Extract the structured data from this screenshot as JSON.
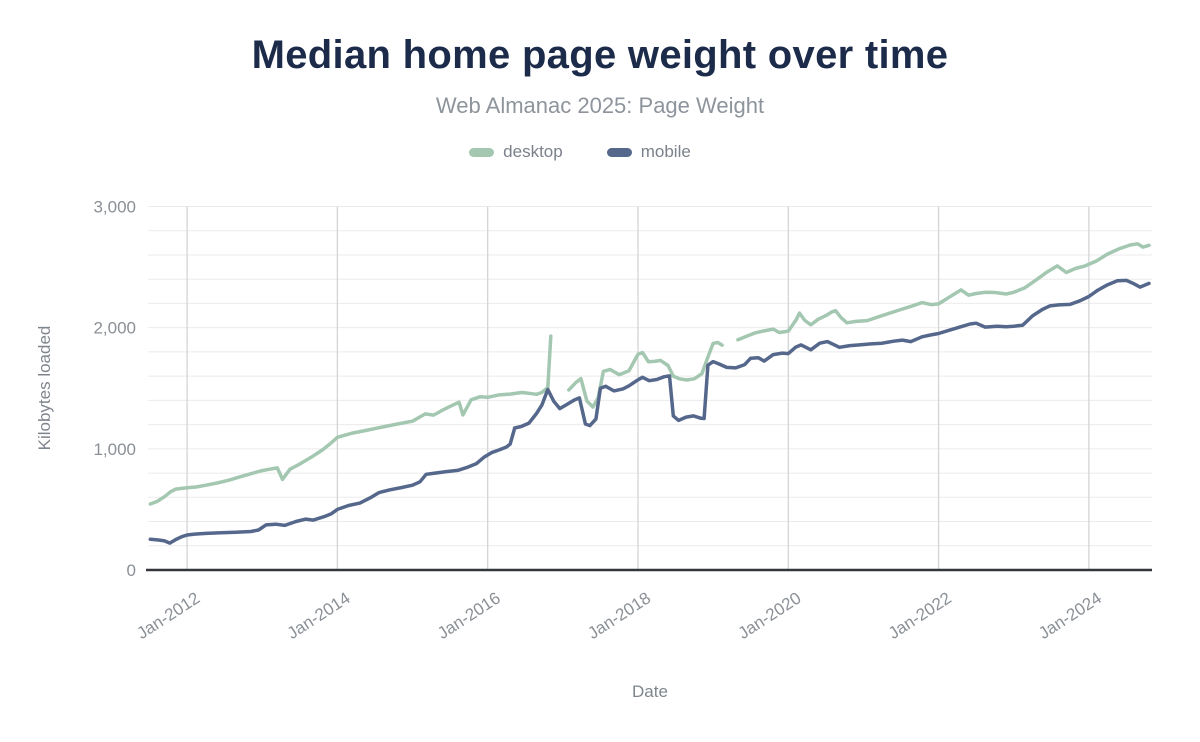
{
  "header": {
    "title": "Median home page weight over time",
    "subtitle": "Web Almanac 2025: Page Weight"
  },
  "legend": {
    "items": [
      {
        "label": "desktop",
        "color": "#a3c7b1"
      },
      {
        "label": "mobile",
        "color": "#55688c"
      }
    ]
  },
  "colors": {
    "title": "#1c2b4a",
    "subtitle_text": "#8e949c",
    "axis_text": "#8a9096",
    "axis_title_text": "#7f858c",
    "axis_line": "#33363b",
    "grid_minor": "#ebebeb",
    "grid_vertical": "#d2d4d6",
    "desktop_line": "#a3c7b1",
    "mobile_line": "#55688c"
  },
  "chart_data": {
    "type": "line",
    "title": "Median home page weight over time",
    "subtitle": "Web Almanac 2025: Page Weight",
    "xlabel": "Date",
    "ylabel": "Kilobytes loaded",
    "legend_position": "top",
    "grid": true,
    "ylim": [
      0,
      3000
    ],
    "y_minor_step": 200,
    "xlim": [
      2011.48,
      2024.84
    ],
    "y_ticks": [
      {
        "v": 0,
        "label": "0"
      },
      {
        "v": 1000,
        "label": "1,000"
      },
      {
        "v": 2000,
        "label": "2,000"
      },
      {
        "v": 3000,
        "label": "3,000"
      }
    ],
    "x_ticks": [
      {
        "t": 2012,
        "label": "Jan-2012"
      },
      {
        "t": 2014,
        "label": "Jan-2014"
      },
      {
        "t": 2016,
        "label": "Jan-2016"
      },
      {
        "t": 2018,
        "label": "Jan-2018"
      },
      {
        "t": 2020,
        "label": "Jan-2020"
      },
      {
        "t": 2022,
        "label": "Jan-2022"
      },
      {
        "t": 2024,
        "label": "Jan-2024"
      }
    ],
    "series": [
      {
        "name": "desktop",
        "color": "#a3c7b1",
        "points": [
          [
            2011.51,
            545
          ],
          [
            2011.6,
            565
          ],
          [
            2011.7,
            605
          ],
          [
            2011.78,
            645
          ],
          [
            2011.85,
            668
          ],
          [
            2012.0,
            678
          ],
          [
            2012.12,
            685
          ],
          [
            2012.25,
            700
          ],
          [
            2012.4,
            718
          ],
          [
            2012.55,
            740
          ],
          [
            2012.7,
            768
          ],
          [
            2012.85,
            795
          ],
          [
            2013.0,
            820
          ],
          [
            2013.1,
            832
          ],
          [
            2013.2,
            843
          ],
          [
            2013.27,
            748
          ],
          [
            2013.37,
            832
          ],
          [
            2013.5,
            875
          ],
          [
            2013.65,
            930
          ],
          [
            2013.8,
            990
          ],
          [
            2013.9,
            1040
          ],
          [
            2014.0,
            1095
          ],
          [
            2014.2,
            1130
          ],
          [
            2014.4,
            1155
          ],
          [
            2014.6,
            1180
          ],
          [
            2014.8,
            1205
          ],
          [
            2015.0,
            1228
          ],
          [
            2015.17,
            1288
          ],
          [
            2015.28,
            1278
          ],
          [
            2015.4,
            1320
          ],
          [
            2015.55,
            1365
          ],
          [
            2015.62,
            1385
          ],
          [
            2015.67,
            1280
          ],
          [
            2015.78,
            1405
          ],
          [
            2015.9,
            1430
          ],
          [
            2016.0,
            1425
          ],
          [
            2016.15,
            1445
          ],
          [
            2016.3,
            1452
          ],
          [
            2016.45,
            1465
          ],
          [
            2016.55,
            1458
          ],
          [
            2016.65,
            1450
          ],
          [
            2016.72,
            1465
          ],
          [
            2016.8,
            1505
          ],
          [
            2016.84,
            1930
          ],
          [
            2016.9,
            null
          ],
          [
            2017.08,
            1486
          ],
          [
            2017.17,
            1545
          ],
          [
            2017.24,
            1580
          ],
          [
            2017.32,
            1395
          ],
          [
            2017.4,
            1345
          ],
          [
            2017.47,
            1420
          ],
          [
            2017.54,
            1640
          ],
          [
            2017.63,
            1655
          ],
          [
            2017.75,
            1612
          ],
          [
            2017.88,
            1645
          ],
          [
            2018.0,
            1780
          ],
          [
            2018.06,
            1795
          ],
          [
            2018.14,
            1718
          ],
          [
            2018.22,
            1722
          ],
          [
            2018.3,
            1730
          ],
          [
            2018.4,
            1688
          ],
          [
            2018.47,
            1600
          ],
          [
            2018.55,
            1578
          ],
          [
            2018.65,
            1568
          ],
          [
            2018.75,
            1578
          ],
          [
            2018.85,
            1620
          ],
          [
            2018.92,
            1740
          ],
          [
            2019.0,
            1870
          ],
          [
            2019.06,
            1878
          ],
          [
            2019.12,
            1856
          ],
          [
            2019.2,
            null
          ],
          [
            2019.33,
            1900
          ],
          [
            2019.45,
            1930
          ],
          [
            2019.55,
            1955
          ],
          [
            2019.65,
            1970
          ],
          [
            2019.8,
            1988
          ],
          [
            2019.88,
            1960
          ],
          [
            2020.0,
            1972
          ],
          [
            2020.1,
            2060
          ],
          [
            2020.15,
            2120
          ],
          [
            2020.22,
            2060
          ],
          [
            2020.3,
            2023
          ],
          [
            2020.4,
            2070
          ],
          [
            2020.5,
            2100
          ],
          [
            2020.58,
            2130
          ],
          [
            2020.63,
            2140
          ],
          [
            2020.7,
            2085
          ],
          [
            2020.78,
            2040
          ],
          [
            2020.9,
            2052
          ],
          [
            2021.05,
            2058
          ],
          [
            2021.2,
            2090
          ],
          [
            2021.35,
            2120
          ],
          [
            2021.5,
            2150
          ],
          [
            2021.65,
            2180
          ],
          [
            2021.78,
            2207
          ],
          [
            2021.9,
            2190
          ],
          [
            2022.0,
            2196
          ],
          [
            2022.15,
            2255
          ],
          [
            2022.3,
            2312
          ],
          [
            2022.4,
            2268
          ],
          [
            2022.5,
            2282
          ],
          [
            2022.62,
            2292
          ],
          [
            2022.75,
            2290
          ],
          [
            2022.9,
            2278
          ],
          [
            2023.0,
            2292
          ],
          [
            2023.15,
            2330
          ],
          [
            2023.3,
            2395
          ],
          [
            2023.45,
            2462
          ],
          [
            2023.58,
            2510
          ],
          [
            2023.7,
            2455
          ],
          [
            2023.82,
            2488
          ],
          [
            2023.95,
            2510
          ],
          [
            2024.1,
            2550
          ],
          [
            2024.25,
            2608
          ],
          [
            2024.4,
            2650
          ],
          [
            2024.55,
            2682
          ],
          [
            2024.65,
            2692
          ],
          [
            2024.72,
            2665
          ],
          [
            2024.8,
            2680
          ]
        ]
      },
      {
        "name": "mobile",
        "color": "#55688c",
        "points": [
          [
            2011.51,
            253
          ],
          [
            2011.62,
            248
          ],
          [
            2011.7,
            240
          ],
          [
            2011.77,
            222
          ],
          [
            2011.85,
            252
          ],
          [
            2011.93,
            275
          ],
          [
            2012.0,
            289
          ],
          [
            2012.1,
            296
          ],
          [
            2012.25,
            302
          ],
          [
            2012.45,
            308
          ],
          [
            2012.65,
            312
          ],
          [
            2012.85,
            318
          ],
          [
            2012.95,
            330
          ],
          [
            2013.05,
            372
          ],
          [
            2013.18,
            378
          ],
          [
            2013.3,
            368
          ],
          [
            2013.45,
            400
          ],
          [
            2013.58,
            420
          ],
          [
            2013.68,
            412
          ],
          [
            2013.82,
            440
          ],
          [
            2013.92,
            465
          ],
          [
            2014.0,
            500
          ],
          [
            2014.15,
            532
          ],
          [
            2014.3,
            552
          ],
          [
            2014.45,
            600
          ],
          [
            2014.55,
            638
          ],
          [
            2014.7,
            662
          ],
          [
            2014.85,
            680
          ],
          [
            2015.0,
            700
          ],
          [
            2015.1,
            728
          ],
          [
            2015.18,
            790
          ],
          [
            2015.3,
            800
          ],
          [
            2015.45,
            812
          ],
          [
            2015.6,
            822
          ],
          [
            2015.72,
            845
          ],
          [
            2015.85,
            878
          ],
          [
            2015.95,
            930
          ],
          [
            2016.05,
            968
          ],
          [
            2016.15,
            990
          ],
          [
            2016.25,
            1015
          ],
          [
            2016.3,
            1040
          ],
          [
            2016.36,
            1172
          ],
          [
            2016.45,
            1185
          ],
          [
            2016.55,
            1212
          ],
          [
            2016.65,
            1292
          ],
          [
            2016.72,
            1360
          ],
          [
            2016.8,
            1490
          ],
          [
            2016.88,
            1392
          ],
          [
            2016.96,
            1332
          ],
          [
            2017.05,
            1365
          ],
          [
            2017.15,
            1402
          ],
          [
            2017.22,
            1420
          ],
          [
            2017.3,
            1205
          ],
          [
            2017.36,
            1192
          ],
          [
            2017.44,
            1245
          ],
          [
            2017.5,
            1500
          ],
          [
            2017.57,
            1516
          ],
          [
            2017.68,
            1478
          ],
          [
            2017.8,
            1495
          ],
          [
            2017.88,
            1520
          ],
          [
            2018.0,
            1570
          ],
          [
            2018.06,
            1590
          ],
          [
            2018.15,
            1562
          ],
          [
            2018.25,
            1572
          ],
          [
            2018.35,
            1595
          ],
          [
            2018.42,
            1602
          ],
          [
            2018.47,
            1272
          ],
          [
            2018.54,
            1235
          ],
          [
            2018.64,
            1262
          ],
          [
            2018.74,
            1272
          ],
          [
            2018.84,
            1252
          ],
          [
            2018.88,
            1250
          ],
          [
            2018.93,
            1690
          ],
          [
            2019.0,
            1720
          ],
          [
            2019.08,
            1700
          ],
          [
            2019.18,
            1672
          ],
          [
            2019.3,
            1668
          ],
          [
            2019.42,
            1695
          ],
          [
            2019.5,
            1748
          ],
          [
            2019.6,
            1752
          ],
          [
            2019.68,
            1724
          ],
          [
            2019.8,
            1778
          ],
          [
            2019.92,
            1790
          ],
          [
            2020.0,
            1786
          ],
          [
            2020.1,
            1840
          ],
          [
            2020.17,
            1858
          ],
          [
            2020.3,
            1817
          ],
          [
            2020.42,
            1872
          ],
          [
            2020.52,
            1885
          ],
          [
            2020.68,
            1838
          ],
          [
            2020.82,
            1852
          ],
          [
            2020.95,
            1858
          ],
          [
            2021.1,
            1866
          ],
          [
            2021.25,
            1872
          ],
          [
            2021.4,
            1888
          ],
          [
            2021.52,
            1897
          ],
          [
            2021.63,
            1885
          ],
          [
            2021.78,
            1925
          ],
          [
            2021.9,
            1940
          ],
          [
            2022.0,
            1952
          ],
          [
            2022.15,
            1980
          ],
          [
            2022.3,
            2008
          ],
          [
            2022.42,
            2030
          ],
          [
            2022.5,
            2037
          ],
          [
            2022.62,
            2005
          ],
          [
            2022.78,
            2012
          ],
          [
            2022.9,
            2008
          ],
          [
            2023.0,
            2012
          ],
          [
            2023.12,
            2020
          ],
          [
            2023.25,
            2097
          ],
          [
            2023.38,
            2150
          ],
          [
            2023.48,
            2180
          ],
          [
            2023.6,
            2188
          ],
          [
            2023.75,
            2192
          ],
          [
            2023.88,
            2222
          ],
          [
            2024.0,
            2257
          ],
          [
            2024.12,
            2310
          ],
          [
            2024.25,
            2355
          ],
          [
            2024.38,
            2388
          ],
          [
            2024.5,
            2390
          ],
          [
            2024.6,
            2362
          ],
          [
            2024.68,
            2335
          ],
          [
            2024.8,
            2365
          ]
        ]
      }
    ]
  }
}
